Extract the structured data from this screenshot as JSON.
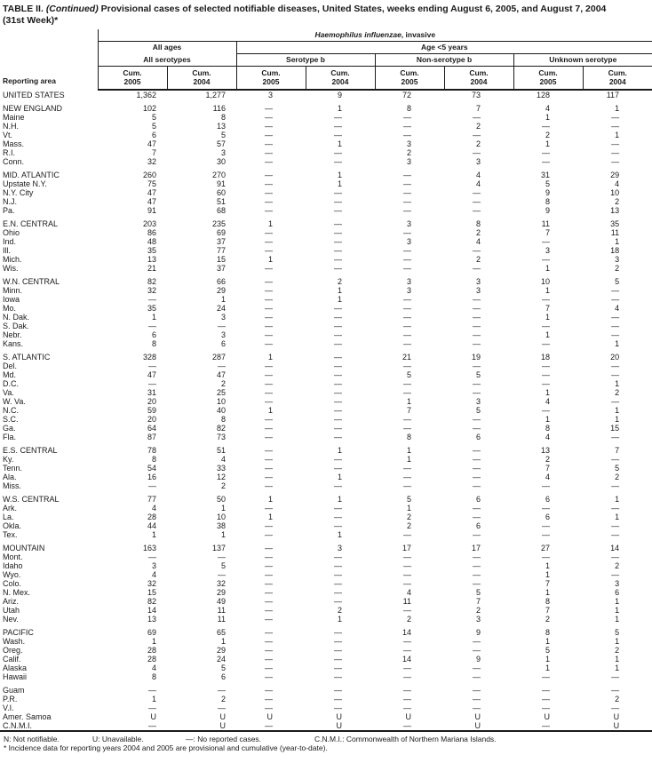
{
  "title": {
    "part1": "TABLE II.",
    "part2": "(Continued)",
    "part3": "Provisional cases of selected notifiable diseases, United States, weeks ending August 6, 2005, and August 7, 2004",
    "line2": "(31st Week)*"
  },
  "header": {
    "reporting_area": "Reporting area",
    "disease_italic": "Haemophilus influenzae",
    "disease_rest": ", invasive",
    "all_ages": "All ages",
    "age_lt5": "Age <5 years",
    "all_serotypes": "All serotypes",
    "serotype_b": "Serotype b",
    "non_serotype_b": "Non-serotype b",
    "unknown_serotype": "Unknown serotype",
    "cum": "Cum.",
    "y2005": "2005",
    "y2004": "2004"
  },
  "sections": [
    {
      "rows": [
        {
          "area": "UNITED STATES",
          "values": [
            "1,362",
            "1,277",
            "3",
            "9",
            "72",
            "73",
            "128",
            "117"
          ]
        }
      ]
    },
    {
      "rows": [
        {
          "area": "NEW ENGLAND",
          "values": [
            "102",
            "116",
            "—",
            "1",
            "8",
            "7",
            "4",
            "1"
          ]
        },
        {
          "area": "Maine",
          "values": [
            "5",
            "8",
            "—",
            "—",
            "—",
            "—",
            "1",
            "—"
          ]
        },
        {
          "area": "N.H.",
          "values": [
            "5",
            "13",
            "—",
            "—",
            "—",
            "2",
            "—",
            "—"
          ]
        },
        {
          "area": "Vt.",
          "values": [
            "6",
            "5",
            "—",
            "—",
            "—",
            "—",
            "2",
            "1"
          ]
        },
        {
          "area": "Mass.",
          "values": [
            "47",
            "57",
            "—",
            "1",
            "3",
            "2",
            "1",
            "—"
          ]
        },
        {
          "area": "R.I.",
          "values": [
            "7",
            "3",
            "—",
            "—",
            "2",
            "—",
            "—",
            "—"
          ]
        },
        {
          "area": "Conn.",
          "values": [
            "32",
            "30",
            "—",
            "—",
            "3",
            "3",
            "—",
            "—"
          ]
        }
      ]
    },
    {
      "rows": [
        {
          "area": "MID. ATLANTIC",
          "values": [
            "260",
            "270",
            "—",
            "1",
            "—",
            "4",
            "31",
            "29"
          ]
        },
        {
          "area": "Upstate N.Y.",
          "values": [
            "75",
            "91",
            "—",
            "1",
            "—",
            "4",
            "5",
            "4"
          ]
        },
        {
          "area": "N.Y. City",
          "values": [
            "47",
            "60",
            "—",
            "—",
            "—",
            "—",
            "9",
            "10"
          ]
        },
        {
          "area": "N.J.",
          "values": [
            "47",
            "51",
            "—",
            "—",
            "—",
            "—",
            "8",
            "2"
          ]
        },
        {
          "area": "Pa.",
          "values": [
            "91",
            "68",
            "—",
            "—",
            "—",
            "—",
            "9",
            "13"
          ]
        }
      ]
    },
    {
      "rows": [
        {
          "area": "E.N. CENTRAL",
          "values": [
            "203",
            "235",
            "1",
            "—",
            "3",
            "8",
            "11",
            "35"
          ]
        },
        {
          "area": "Ohio",
          "values": [
            "86",
            "69",
            "—",
            "—",
            "—",
            "2",
            "7",
            "11"
          ]
        },
        {
          "area": "Ind.",
          "values": [
            "48",
            "37",
            "—",
            "—",
            "3",
            "4",
            "—",
            "1"
          ]
        },
        {
          "area": "Ill.",
          "values": [
            "35",
            "77",
            "—",
            "—",
            "—",
            "—",
            "3",
            "18"
          ]
        },
        {
          "area": "Mich.",
          "values": [
            "13",
            "15",
            "1",
            "—",
            "—",
            "2",
            "—",
            "3"
          ]
        },
        {
          "area": "Wis.",
          "values": [
            "21",
            "37",
            "—",
            "—",
            "—",
            "—",
            "1",
            "2"
          ]
        }
      ]
    },
    {
      "rows": [
        {
          "area": "W.N. CENTRAL",
          "values": [
            "82",
            "66",
            "—",
            "2",
            "3",
            "3",
            "10",
            "5"
          ]
        },
        {
          "area": "Minn.",
          "values": [
            "32",
            "29",
            "—",
            "1",
            "3",
            "3",
            "1",
            "—"
          ]
        },
        {
          "area": "Iowa",
          "values": [
            "—",
            "1",
            "—",
            "1",
            "—",
            "—",
            "—",
            "—"
          ]
        },
        {
          "area": "Mo.",
          "values": [
            "35",
            "24",
            "—",
            "—",
            "—",
            "—",
            "7",
            "4"
          ]
        },
        {
          "area": "N. Dak.",
          "values": [
            "1",
            "3",
            "—",
            "—",
            "—",
            "—",
            "1",
            "—"
          ]
        },
        {
          "area": "S. Dak.",
          "values": [
            "—",
            "—",
            "—",
            "—",
            "—",
            "—",
            "—",
            "—"
          ]
        },
        {
          "area": "Nebr.",
          "values": [
            "6",
            "3",
            "—",
            "—",
            "—",
            "—",
            "1",
            "—"
          ]
        },
        {
          "area": "Kans.",
          "values": [
            "8",
            "6",
            "—",
            "—",
            "—",
            "—",
            "—",
            "1"
          ]
        }
      ]
    },
    {
      "rows": [
        {
          "area": "S. ATLANTIC",
          "values": [
            "328",
            "287",
            "1",
            "—",
            "21",
            "19",
            "18",
            "20"
          ]
        },
        {
          "area": "Del.",
          "values": [
            "—",
            "—",
            "—",
            "—",
            "—",
            "—",
            "—",
            "—"
          ]
        },
        {
          "area": "Md.",
          "values": [
            "47",
            "47",
            "—",
            "—",
            "5",
            "5",
            "—",
            "—"
          ]
        },
        {
          "area": "D.C.",
          "values": [
            "—",
            "2",
            "—",
            "—",
            "—",
            "—",
            "—",
            "1"
          ]
        },
        {
          "area": "Va.",
          "values": [
            "31",
            "25",
            "—",
            "—",
            "—",
            "—",
            "1",
            "2"
          ]
        },
        {
          "area": "W. Va.",
          "values": [
            "20",
            "10",
            "—",
            "—",
            "1",
            "3",
            "4",
            "—"
          ]
        },
        {
          "area": "N.C.",
          "values": [
            "59",
            "40",
            "1",
            "—",
            "7",
            "5",
            "—",
            "1"
          ]
        },
        {
          "area": "S.C.",
          "values": [
            "20",
            "8",
            "—",
            "—",
            "—",
            "—",
            "1",
            "1"
          ]
        },
        {
          "area": "Ga.",
          "values": [
            "64",
            "82",
            "—",
            "—",
            "—",
            "—",
            "8",
            "15"
          ]
        },
        {
          "area": "Fla.",
          "values": [
            "87",
            "73",
            "—",
            "—",
            "8",
            "6",
            "4",
            "—"
          ]
        }
      ]
    },
    {
      "rows": [
        {
          "area": "E.S. CENTRAL",
          "values": [
            "78",
            "51",
            "—",
            "1",
            "1",
            "—",
            "13",
            "7"
          ]
        },
        {
          "area": "Ky.",
          "values": [
            "8",
            "4",
            "—",
            "—",
            "1",
            "—",
            "2",
            "—"
          ]
        },
        {
          "area": "Tenn.",
          "values": [
            "54",
            "33",
            "—",
            "—",
            "—",
            "—",
            "7",
            "5"
          ]
        },
        {
          "area": "Ala.",
          "values": [
            "16",
            "12",
            "—",
            "1",
            "—",
            "—",
            "4",
            "2"
          ]
        },
        {
          "area": "Miss.",
          "values": [
            "—",
            "2",
            "—",
            "—",
            "—",
            "—",
            "—",
            "—"
          ]
        }
      ]
    },
    {
      "rows": [
        {
          "area": "W.S. CENTRAL",
          "values": [
            "77",
            "50",
            "1",
            "1",
            "5",
            "6",
            "6",
            "1"
          ]
        },
        {
          "area": "Ark.",
          "values": [
            "4",
            "1",
            "—",
            "—",
            "1",
            "—",
            "—",
            "—"
          ]
        },
        {
          "area": "La.",
          "values": [
            "28",
            "10",
            "1",
            "—",
            "2",
            "—",
            "6",
            "1"
          ]
        },
        {
          "area": "Okla.",
          "values": [
            "44",
            "38",
            "—",
            "—",
            "2",
            "6",
            "—",
            "—"
          ]
        },
        {
          "area": "Tex.",
          "values": [
            "1",
            "1",
            "—",
            "1",
            "—",
            "—",
            "—",
            "—"
          ]
        }
      ]
    },
    {
      "rows": [
        {
          "area": "MOUNTAIN",
          "values": [
            "163",
            "137",
            "—",
            "3",
            "17",
            "17",
            "27",
            "14"
          ]
        },
        {
          "area": "Mont.",
          "values": [
            "—",
            "—",
            "—",
            "—",
            "—",
            "—",
            "—",
            "—"
          ]
        },
        {
          "area": "Idaho",
          "values": [
            "3",
            "5",
            "—",
            "—",
            "—",
            "—",
            "1",
            "2"
          ]
        },
        {
          "area": "Wyo.",
          "values": [
            "4",
            "—",
            "—",
            "—",
            "—",
            "—",
            "1",
            "—"
          ]
        },
        {
          "area": "Colo.",
          "values": [
            "32",
            "32",
            "—",
            "—",
            "—",
            "—",
            "7",
            "3"
          ]
        },
        {
          "area": "N. Mex.",
          "values": [
            "15",
            "29",
            "—",
            "—",
            "4",
            "5",
            "1",
            "6"
          ]
        },
        {
          "area": "Ariz.",
          "values": [
            "82",
            "49",
            "—",
            "—",
            "11",
            "7",
            "8",
            "1"
          ]
        },
        {
          "area": "Utah",
          "values": [
            "14",
            "11",
            "—",
            "2",
            "—",
            "2",
            "7",
            "1"
          ]
        },
        {
          "area": "Nev.",
          "values": [
            "13",
            "11",
            "—",
            "1",
            "2",
            "3",
            "2",
            "1"
          ]
        }
      ]
    },
    {
      "rows": [
        {
          "area": "PACIFIC",
          "values": [
            "69",
            "65",
            "—",
            "—",
            "14",
            "9",
            "8",
            "5"
          ]
        },
        {
          "area": "Wash.",
          "values": [
            "1",
            "1",
            "—",
            "—",
            "—",
            "—",
            "1",
            "1"
          ]
        },
        {
          "area": "Oreg.",
          "values": [
            "28",
            "29",
            "—",
            "—",
            "—",
            "—",
            "5",
            "2"
          ]
        },
        {
          "area": "Calif.",
          "values": [
            "28",
            "24",
            "—",
            "—",
            "14",
            "9",
            "1",
            "1"
          ]
        },
        {
          "area": "Alaska",
          "values": [
            "4",
            "5",
            "—",
            "—",
            "—",
            "—",
            "1",
            "1"
          ]
        },
        {
          "area": "Hawaii",
          "values": [
            "8",
            "6",
            "—",
            "—",
            "—",
            "—",
            "—",
            "—"
          ]
        }
      ]
    },
    {
      "rows": [
        {
          "area": "Guam",
          "values": [
            "—",
            "—",
            "—",
            "—",
            "—",
            "—",
            "—",
            "—"
          ]
        },
        {
          "area": "P.R.",
          "values": [
            "1",
            "2",
            "—",
            "—",
            "—",
            "—",
            "—",
            "2"
          ]
        },
        {
          "area": "V.I.",
          "values": [
            "—",
            "—",
            "—",
            "—",
            "—",
            "—",
            "—",
            "—"
          ]
        },
        {
          "area": "Amer. Samoa",
          "values": [
            "U",
            "U",
            "U",
            "U",
            "U",
            "U",
            "U",
            "U"
          ]
        },
        {
          "area": "C.N.M.I.",
          "values": [
            "—",
            "U",
            "—",
            "U",
            "—",
            "U",
            "—",
            "U"
          ]
        }
      ]
    }
  ],
  "footnotes": {
    "legend": [
      "N: Not notifiable.",
      "U: Unavailable.",
      "—: No reported cases.",
      "C.N.M.I.: Commonwealth of Northern Mariana Islands."
    ],
    "footnote2": "* Incidence data for reporting years 2004 and 2005 are provisional and cumulative (year-to-date)."
  }
}
